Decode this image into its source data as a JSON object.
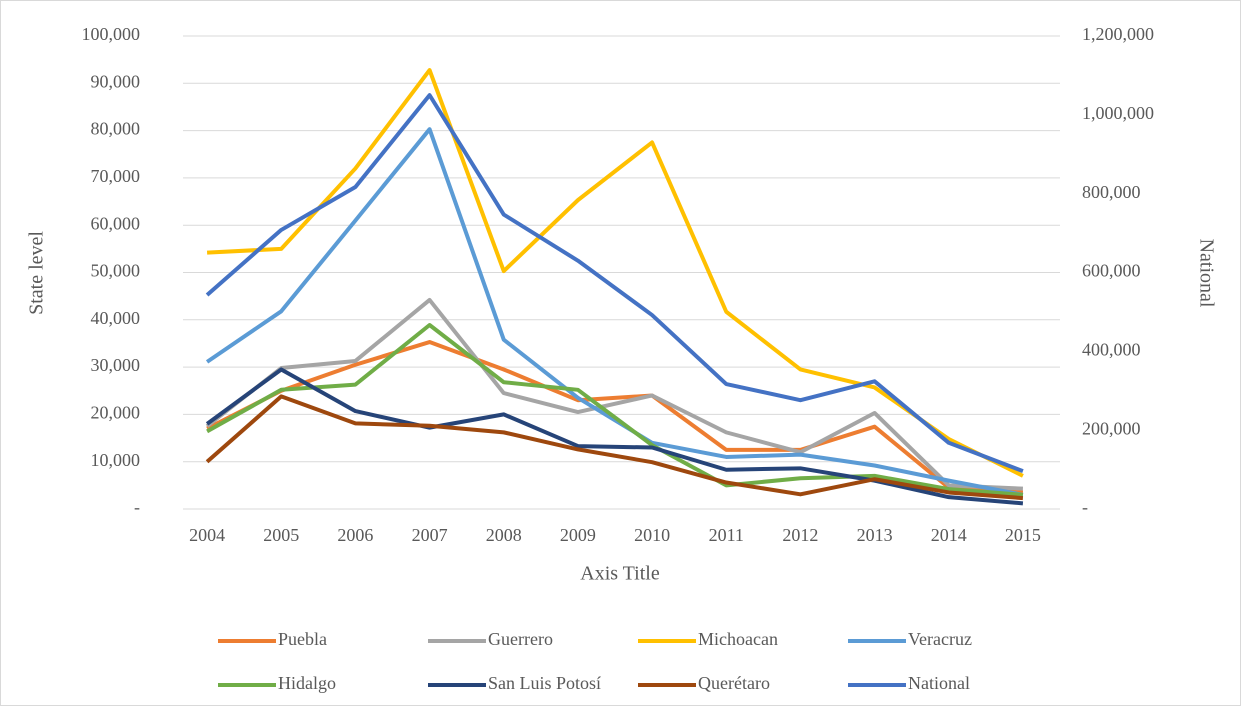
{
  "chart_data": {
    "type": "line",
    "ylabel": "State level",
    "y2label": "National",
    "xlabel": "Axis Title",
    "categories": [
      "2004",
      "2005",
      "2006",
      "2007",
      "2008",
      "2009",
      "2010",
      "2011",
      "2012",
      "2013",
      "2014",
      "2015"
    ],
    "series": [
      {
        "name": "Puebla",
        "color": "#ed7d31",
        "values": [
          17000,
          25000,
          30500,
          35300,
          29500,
          23000,
          24000,
          12500,
          12500,
          17400,
          4500,
          3500
        ]
      },
      {
        "name": "Guerrero",
        "color": "#a5a5a5",
        "values": [
          17500,
          29800,
          31300,
          44200,
          24500,
          20500,
          24000,
          16200,
          12000,
          20300,
          5000,
          4300
        ]
      },
      {
        "name": "Michoacan",
        "color": "#ffc000",
        "values": [
          54200,
          55000,
          72000,
          92800,
          50300,
          65300,
          77500,
          41700,
          29500,
          25700,
          14800,
          7000
        ]
      },
      {
        "name": "Veracruz",
        "color": "#5b9bd5",
        "values": [
          31100,
          41800,
          61000,
          80300,
          35800,
          23500,
          14000,
          11000,
          11500,
          9200,
          6000,
          3000
        ]
      },
      {
        "name": "Hidalgo",
        "color": "#70ad47",
        "values": [
          16400,
          25200,
          26300,
          38900,
          26800,
          25200,
          13500,
          5000,
          6500,
          7000,
          4200,
          3000
        ]
      },
      {
        "name": "San Luis Potosí",
        "color": "#264478",
        "values": [
          18000,
          29500,
          20700,
          17200,
          20000,
          13300,
          13000,
          8300,
          8600,
          6000,
          2500,
          1200
        ]
      },
      {
        "name": "Querétaro",
        "color": "#9e480e",
        "values": [
          10000,
          23800,
          18100,
          17600,
          16200,
          12600,
          9900,
          5600,
          3100,
          6300,
          3500,
          2300
        ]
      },
      {
        "name": "National",
        "color": "#4472c4",
        "axis": "y2",
        "values": [
          543000,
          708000,
          817000,
          1050000,
          747000,
          630000,
          492000,
          317000,
          276000,
          324000,
          168000,
          96000
        ]
      }
    ],
    "ylim": [
      0,
      100000
    ],
    "yticks": [
      {
        "value": 0,
        "label": "-"
      },
      {
        "value": 10000,
        "label": "10,000"
      },
      {
        "value": 20000,
        "label": "20,000"
      },
      {
        "value": 30000,
        "label": "30,000"
      },
      {
        "value": 40000,
        "label": "40,000"
      },
      {
        "value": 50000,
        "label": "50,000"
      },
      {
        "value": 60000,
        "label": "60,000"
      },
      {
        "value": 70000,
        "label": "70,000"
      },
      {
        "value": 80000,
        "label": "80,000"
      },
      {
        "value": 90000,
        "label": "90,000"
      },
      {
        "value": 100000,
        "label": "100,000"
      }
    ],
    "y2lim": [
      0,
      1200000
    ],
    "y2ticks": [
      {
        "value": 0,
        "label": "-"
      },
      {
        "value": 200000,
        "label": "200,000"
      },
      {
        "value": 400000,
        "label": "400,000"
      },
      {
        "value": 600000,
        "label": "600,000"
      },
      {
        "value": 800000,
        "label": "800,000"
      },
      {
        "value": 1000000,
        "label": "1,000,000"
      },
      {
        "value": 1200000,
        "label": "1,200,000"
      }
    ],
    "grid": true,
    "legend": "bottom"
  }
}
